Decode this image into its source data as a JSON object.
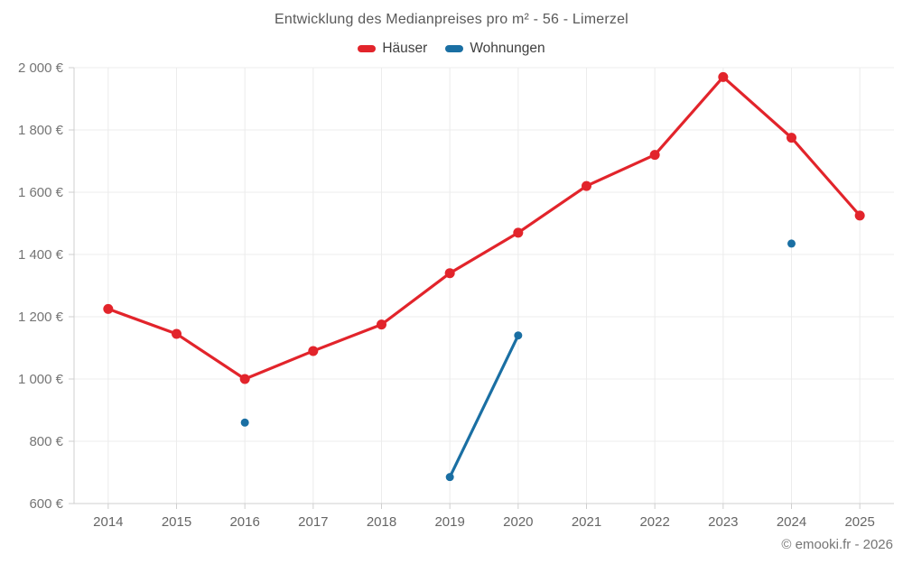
{
  "page": {
    "copyright": "© emooki.fr - 2026"
  },
  "chart_data": {
    "type": "line",
    "title": "Entwicklung des Medianpreises pro m² - 56 - Limerzel",
    "categories": [
      "2014",
      "2015",
      "2016",
      "2017",
      "2018",
      "2019",
      "2020",
      "2021",
      "2022",
      "2023",
      "2024",
      "2025"
    ],
    "series": [
      {
        "name": "Häuser",
        "color": "#e2242b",
        "marker_radius": 5.5,
        "values": [
          1225,
          1145,
          1000,
          1090,
          1175,
          1340,
          1470,
          1620,
          1720,
          1970,
          1775,
          1525
        ]
      },
      {
        "name": "Wohnungen",
        "color": "#1a6fa3",
        "marker_radius": 4.5,
        "values": [
          null,
          null,
          860,
          null,
          null,
          685,
          1140,
          null,
          null,
          null,
          1435,
          null
        ]
      }
    ],
    "xlabel": "",
    "ylabel": "",
    "ylim": [
      600,
      2000
    ],
    "ytick_step": 200,
    "ytick_labels": [
      "600 €",
      "800 €",
      "1 000 €",
      "1 200 €",
      "1 400 €",
      "1 600 €",
      "1 800 €",
      "2 000 €"
    ],
    "grid": true,
    "legend_position": "top",
    "gap_policy": "no-span"
  }
}
